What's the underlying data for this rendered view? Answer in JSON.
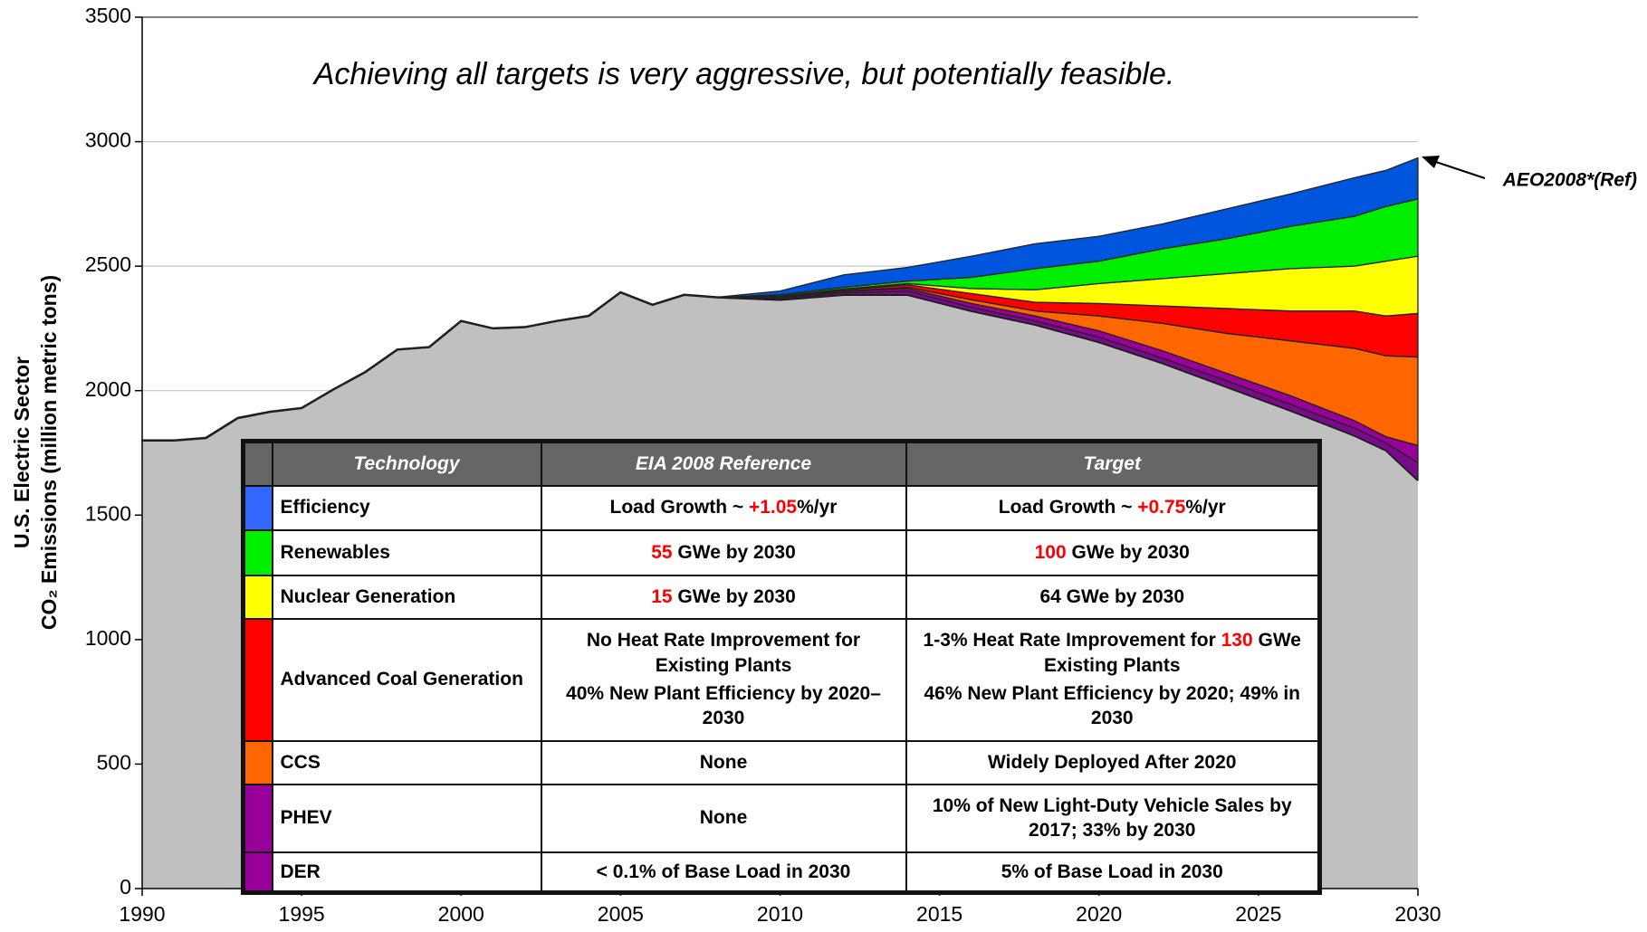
{
  "chart_data": {
    "type": "stacked_area",
    "title": "Achieving all targets is very aggressive, but potentially feasible.",
    "y_label": [
      "U.S. Electric Sector",
      "CO₂ Emissions (million metric tons)"
    ],
    "annotation": "AEO2008*(Ref)",
    "x": [
      1990,
      1991,
      1992,
      1993,
      1994,
      1995,
      1996,
      1997,
      1998,
      1999,
      2000,
      2001,
      2002,
      2003,
      2004,
      2005,
      2006,
      2007,
      2008,
      2010,
      2012,
      2014,
      2016,
      2018,
      2020,
      2022,
      2024,
      2026,
      2028,
      2029,
      2030
    ],
    "xlim": [
      1990,
      2030
    ],
    "xticks": [
      1990,
      1995,
      2000,
      2005,
      2010,
      2015,
      2020,
      2025,
      2030
    ],
    "ylim": [
      0,
      3500
    ],
    "yticks": [
      0,
      500,
      1000,
      1500,
      2000,
      2500,
      3000,
      3500
    ],
    "grid": true,
    "series": [
      {
        "color": "#c0c0c0",
        "values": [
          1800,
          1800,
          1810,
          1890,
          1915,
          1930,
          2005,
          2075,
          2165,
          2175,
          2280,
          2250,
          2255,
          2280,
          2300,
          2395,
          2345,
          2385,
          2375,
          2365,
          2385,
          2385,
          2320,
          2265,
          2195,
          2110,
          2015,
          1920,
          1820,
          1760,
          1640
        ]
      },
      {
        "color": "#7a0a8c",
        "values": [
          0,
          0,
          0,
          0,
          0,
          0,
          0,
          0,
          0,
          0,
          0,
          0,
          0,
          0,
          0,
          0,
          0,
          0,
          0,
          5,
          7,
          15,
          15,
          15,
          20,
          20,
          25,
          25,
          30,
          30,
          70
        ]
      },
      {
        "color": "#990099",
        "values": [
          0,
          0,
          0,
          0,
          0,
          0,
          0,
          0,
          0,
          0,
          0,
          0,
          0,
          0,
          0,
          0,
          0,
          0,
          0,
          5,
          6,
          10,
          15,
          20,
          25,
          30,
          30,
          35,
          30,
          25,
          70
        ]
      },
      {
        "color": "#ff6600",
        "values": [
          0,
          0,
          0,
          0,
          0,
          0,
          0,
          0,
          0,
          0,
          0,
          0,
          0,
          0,
          0,
          0,
          0,
          0,
          0,
          0,
          2,
          5,
          15,
          20,
          60,
          110,
          160,
          220,
          290,
          325,
          355
        ]
      },
      {
        "color": "#ff0000",
        "values": [
          0,
          0,
          0,
          0,
          0,
          0,
          0,
          0,
          0,
          0,
          0,
          0,
          0,
          0,
          0,
          0,
          0,
          0,
          0,
          3,
          5,
          10,
          25,
          35,
          50,
          70,
          100,
          120,
          150,
          160,
          175
        ]
      },
      {
        "color": "#ffff00",
        "values": [
          0,
          0,
          0,
          0,
          0,
          0,
          0,
          0,
          0,
          0,
          0,
          0,
          0,
          0,
          0,
          0,
          0,
          0,
          0,
          2,
          3,
          5,
          20,
          50,
          80,
          110,
          140,
          170,
          180,
          220,
          230
        ]
      },
      {
        "color": "#00ee00",
        "values": [
          0,
          0,
          0,
          0,
          0,
          0,
          0,
          0,
          0,
          0,
          0,
          0,
          0,
          0,
          0,
          0,
          0,
          0,
          0,
          5,
          7,
          10,
          45,
          85,
          90,
          120,
          140,
          170,
          200,
          220,
          230
        ]
      },
      {
        "color": "#0055dd",
        "values": [
          0,
          0,
          0,
          0,
          0,
          0,
          0,
          0,
          0,
          0,
          0,
          0,
          0,
          0,
          0,
          0,
          0,
          0,
          0,
          15,
          50,
          55,
          85,
          100,
          100,
          100,
          120,
          130,
          155,
          145,
          165
        ]
      }
    ]
  },
  "table": {
    "header": [
      "Technology",
      "EIA 2008 Reference",
      "Target"
    ],
    "rows": [
      {
        "tech": "Efficiency",
        "color": "#3366ff",
        "ref": [
          [
            "Load Growth ~ ",
            {
              "text": "+1.05",
              "color": "#ff0000"
            },
            "%/yr"
          ]
        ],
        "target": [
          [
            "Load Growth ~ ",
            {
              "text": "+0.75",
              "color": "#ff0000"
            },
            "%/yr"
          ]
        ]
      },
      {
        "tech": "Renewables",
        "color": "#00ee00",
        "ref": [
          [
            {
              "text": "55",
              "color": "#ff0000"
            },
            " GWe by 2030"
          ]
        ],
        "target": [
          [
            {
              "text": "100",
              "color": "#ff0000"
            },
            " GWe by 2030"
          ]
        ]
      },
      {
        "tech": "Nuclear Generation",
        "color": "#ffff00",
        "ref": [
          [
            {
              "text": "15",
              "color": "#ff0000"
            },
            " GWe by 2030"
          ]
        ],
        "target": [
          [
            "64 GWe by 2030"
          ]
        ]
      },
      {
        "tech": "Advanced Coal Generation",
        "color": "#ff0000",
        "ref": [
          [
            "No Heat Rate Improvement for Existing Plants"
          ],
          [
            "40% New Plant Efficiency by 2020–2030"
          ]
        ],
        "target": [
          [
            "1-3% Heat Rate Improvement for ",
            {
              "text": "130",
              "color": "#ff0000"
            },
            " GWe Existing Plants"
          ],
          [
            "46% New Plant Efficiency by 2020; 49% in 2030"
          ]
        ]
      },
      {
        "tech": "CCS",
        "color": "#ff6600",
        "ref": [
          [
            "None"
          ]
        ],
        "target": [
          [
            "Widely Deployed After 2020"
          ]
        ]
      },
      {
        "tech": "PHEV",
        "color": "#990099",
        "ref": [
          [
            "None"
          ]
        ],
        "target": [
          [
            "10% of New Light-Duty Vehicle Sales by 2017; 33% by 2030"
          ]
        ]
      },
      {
        "tech": "DER",
        "color": "#990099",
        "ref": [
          [
            "< 0.1% of Base Load in 2030"
          ]
        ],
        "target": [
          [
            "5% of Base Load in 2030"
          ]
        ]
      }
    ]
  }
}
